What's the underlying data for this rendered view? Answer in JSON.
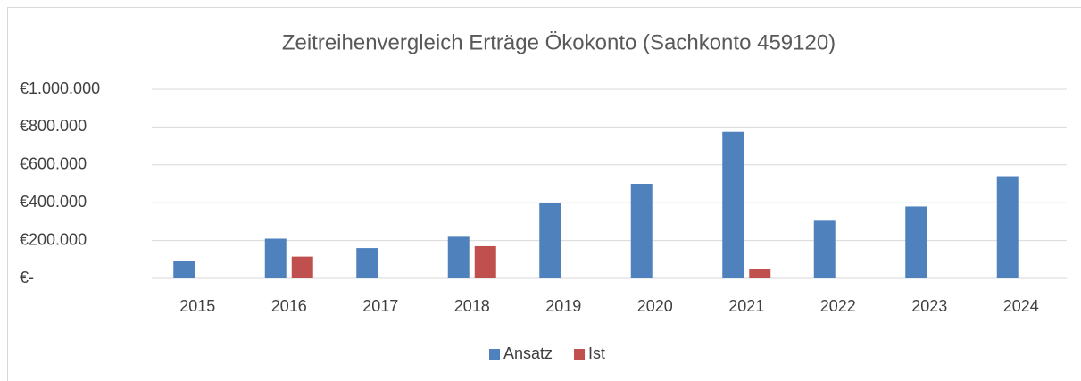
{
  "chart_data": {
    "type": "bar",
    "title": "Zeitreihenvergleich Erträge Ökokonto (Sachkonto 459120)",
    "categories": [
      "2015",
      "2016",
      "2017",
      "2018",
      "2019",
      "2020",
      "2021",
      "2022",
      "2023",
      "2024"
    ],
    "series": [
      {
        "name": "Ansatz",
        "color": "#4f81bd",
        "values": [
          90000,
          210000,
          160000,
          220000,
          400000,
          500000,
          775000,
          305000,
          380000,
          540000
        ]
      },
      {
        "name": "Ist",
        "color": "#c0504d",
        "values": [
          0,
          115000,
          0,
          170000,
          0,
          0,
          50000,
          0,
          0,
          0
        ]
      }
    ],
    "ylim": [
      0,
      1000000
    ],
    "yticks": [
      {
        "value": 0,
        "label": "€-"
      },
      {
        "value": 200000,
        "label": "€200.000"
      },
      {
        "value": 400000,
        "label": "€400.000"
      },
      {
        "value": 600000,
        "label": "€600.000"
      },
      {
        "value": 800000,
        "label": "€800.000"
      },
      {
        "value": 1000000,
        "label": "€1.000.000"
      }
    ],
    "grid": true,
    "legend": "bottom"
  }
}
